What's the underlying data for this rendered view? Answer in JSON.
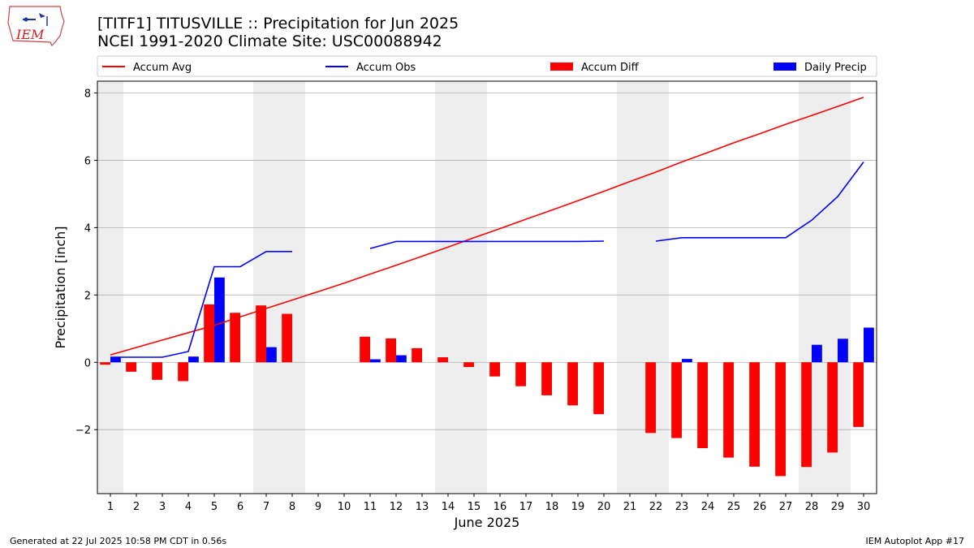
{
  "title_line1": "[TITF1] TITUSVILLE :: Precipitation for Jun 2025",
  "title_line2": "NCEI 1991-2020 Climate Site: USC00088942",
  "logo_text": "IEM",
  "footer_left": "Generated at 22 Jul 2025 10:58 PM CDT in 0.56s",
  "footer_right": "IEM Autoplot App #17",
  "colors": {
    "avg": "#ff0000",
    "obs": "#0000ff",
    "diff": "#ff0000",
    "daily": "#0000ff",
    "weekend_shade": "#eeeeee",
    "grid": "#b0b0b0"
  },
  "chart_data": {
    "type": "bar",
    "xlabel": "June 2025",
    "ylabel": "Precipitation [inch]",
    "x": [
      1,
      2,
      3,
      4,
      5,
      6,
      7,
      8,
      9,
      10,
      11,
      12,
      13,
      14,
      15,
      16,
      17,
      18,
      19,
      20,
      21,
      22,
      23,
      24,
      25,
      26,
      27,
      28,
      29,
      30
    ],
    "xlim": [
      0.5,
      30.5
    ],
    "ylim": [
      -3.9,
      8.35
    ],
    "yticks": [
      -2,
      0,
      2,
      4,
      6,
      8
    ],
    "grid": "horizontal",
    "legend_position": "top",
    "legend": [
      "Accum Avg",
      "Accum Obs",
      "Accum Diff",
      "Daily Precip"
    ],
    "shaded_days": [
      1,
      7,
      8,
      14,
      15,
      21,
      22,
      28,
      29
    ],
    "series": [
      {
        "name": "Accum Avg",
        "type": "line",
        "values": [
          0.22,
          0.44,
          0.66,
          0.88,
          1.1,
          1.35,
          1.6,
          1.85,
          2.1,
          2.35,
          2.62,
          2.88,
          3.15,
          3.42,
          3.7,
          3.97,
          4.25,
          4.52,
          4.8,
          5.08,
          5.37,
          5.65,
          5.95,
          6.23,
          6.52,
          6.79,
          7.07,
          7.33,
          7.6,
          7.87
        ]
      },
      {
        "name": "Accum Obs",
        "type": "line",
        "values": [
          0.15,
          0.15,
          0.15,
          0.32,
          2.84,
          2.84,
          3.29,
          3.29,
          null,
          null,
          3.38,
          3.59,
          3.59,
          3.59,
          3.59,
          3.59,
          3.59,
          3.59,
          3.59,
          3.6,
          null,
          3.6,
          3.7,
          3.7,
          3.7,
          3.7,
          3.7,
          4.22,
          4.92,
          5.95
        ]
      },
      {
        "name": "Accum Diff",
        "type": "bar",
        "values": [
          -0.07,
          -0.28,
          -0.52,
          -0.56,
          1.72,
          1.47,
          1.69,
          1.44,
          null,
          null,
          0.76,
          0.71,
          0.42,
          0.15,
          -0.14,
          -0.42,
          -0.71,
          -0.98,
          -1.28,
          -1.54,
          null,
          -2.1,
          -2.25,
          -2.55,
          -2.83,
          -3.1,
          -3.38,
          -3.11,
          -2.68,
          -1.92
        ]
      },
      {
        "name": "Daily Precip",
        "type": "bar",
        "values": [
          0.15,
          0,
          0,
          0.17,
          2.52,
          0,
          0.45,
          0,
          null,
          null,
          0.09,
          0.21,
          0,
          0,
          0,
          0,
          0,
          0,
          0,
          0,
          null,
          0,
          0.1,
          0,
          0,
          0,
          0,
          0.52,
          0.7,
          1.03
        ]
      }
    ]
  }
}
